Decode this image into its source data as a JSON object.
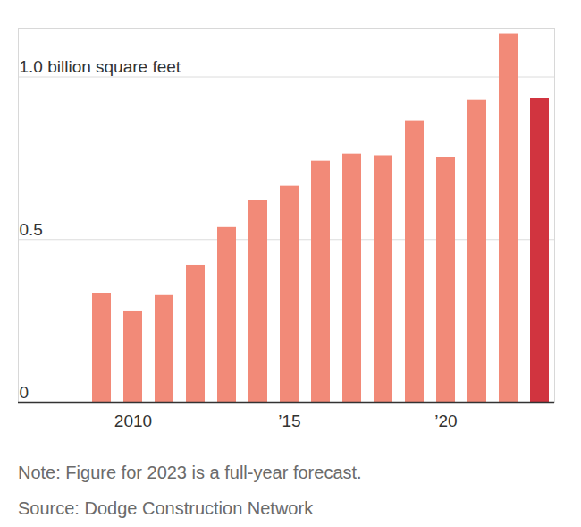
{
  "chart_data": {
    "type": "bar",
    "categories": [
      null,
      "2010",
      null,
      null,
      null,
      null,
      "’15",
      null,
      null,
      null,
      null,
      "’20",
      null,
      null,
      null
    ],
    "values": [
      0.333,
      0.278,
      0.328,
      0.421,
      0.537,
      0.62,
      0.664,
      0.741,
      0.763,
      0.758,
      0.865,
      0.752,
      0.928,
      1.132,
      0.934
    ],
    "colors": [
      "#f28a78",
      "#f28a78",
      "#f28a78",
      "#f28a78",
      "#f28a78",
      "#f28a78",
      "#f28a78",
      "#f28a78",
      "#f28a78",
      "#f28a78",
      "#f28a78",
      "#f28a78",
      "#f28a78",
      "#f28a78",
      "#d1343f"
    ],
    "ylim": [
      0,
      1.15
    ],
    "yticks": [
      0,
      0.5,
      {
        "value": 1,
        "label": "1.0 billion square feet"
      }
    ],
    "grid": true,
    "notes": [
      "Note: Figure for 2023 is a full-year forecast.",
      "Source: Dodge Construction Network"
    ]
  }
}
